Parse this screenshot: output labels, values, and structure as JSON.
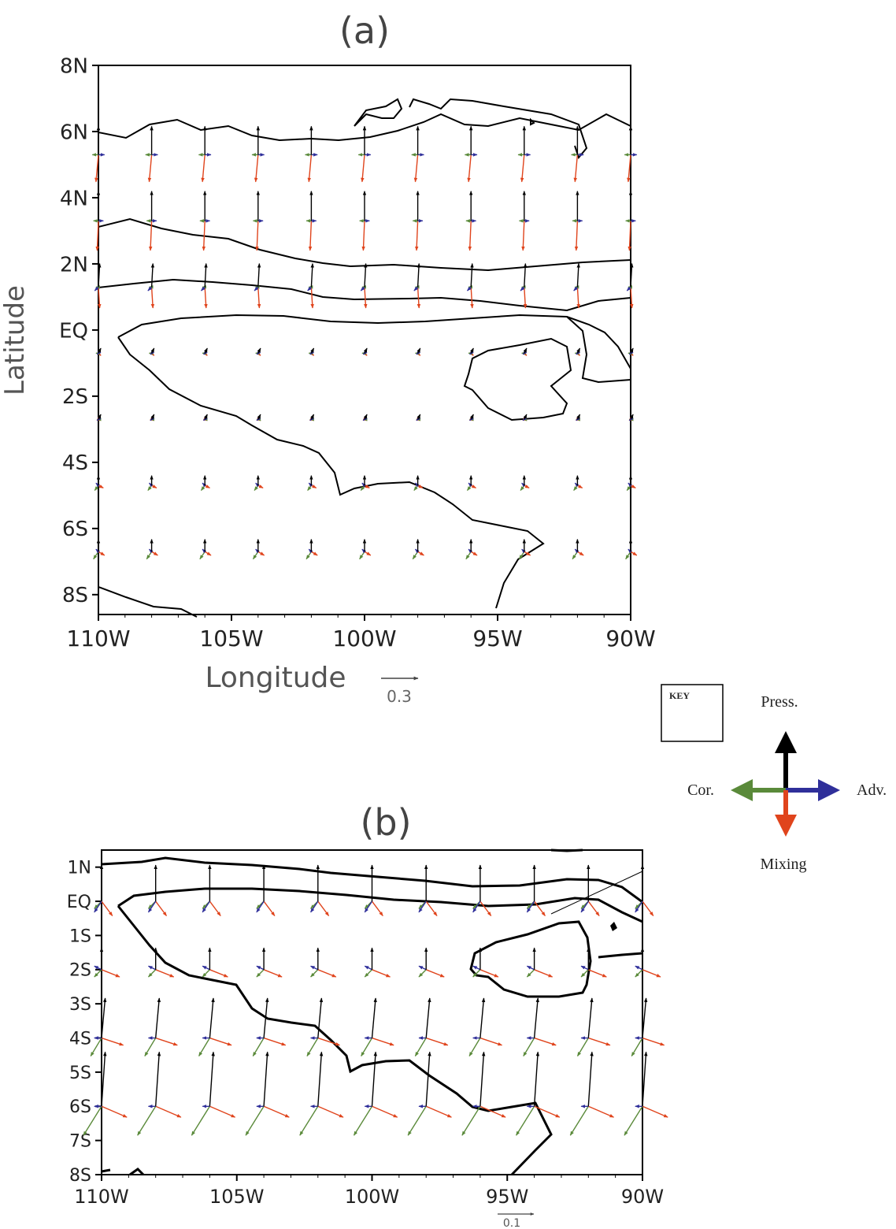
{
  "panel_a": {
    "title": "(a)",
    "ylabel": "Latitude",
    "xlabel": "Longitude",
    "y_ticks": [
      "8N",
      "6N",
      "4N",
      "2N",
      "EQ",
      "2S",
      "4S",
      "6S",
      "8S"
    ],
    "x_ticks": [
      "110W",
      "105W",
      "100W",
      "95W",
      "90W"
    ],
    "scale_label": "0.3"
  },
  "panel_b": {
    "title": "(b)",
    "y_ticks": [
      "1N",
      "EQ",
      "1S",
      "2S",
      "3S",
      "4S",
      "5S",
      "6S",
      "7S",
      "8S"
    ],
    "x_ticks": [
      "110W",
      "105W",
      "100W",
      "95W",
      "90W"
    ],
    "scale_label": "0.1"
  },
  "key": {
    "title": "KEY",
    "press": "Press.",
    "cor": "Cor.",
    "adv": "Adv.",
    "mixing": "Mixing",
    "colors": {
      "press": "#000000",
      "cor": "#5a8a3a",
      "adv": "#2f2f9a",
      "mixing": "#e0441c"
    }
  },
  "chart_data": [
    {
      "type": "vector field",
      "panel": "a",
      "lon_range": [
        -110,
        -90
      ],
      "lat_range": [
        -8.6,
        8
      ],
      "units_per_scale_arrow": 0.3,
      "lon_points": [
        -110,
        -108,
        -106,
        -104,
        -102,
        -100,
        -98,
        -96,
        -94,
        -92,
        -90
      ],
      "rows": [
        {
          "lat": 5.3,
          "press": [
            0.0,
            0.23
          ],
          "cor": [
            -0.05,
            0
          ],
          "adv": [
            0.05,
            0
          ],
          "mixing": [
            -0.02,
            -0.22
          ]
        },
        {
          "lat": 3.3,
          "press": [
            0.0,
            0.24
          ],
          "cor": [
            -0.04,
            0
          ],
          "adv": [
            0.04,
            0
          ],
          "mixing": [
            -0.01,
            -0.24
          ]
        },
        {
          "lat": 1.3,
          "press": [
            0.01,
            0.19
          ],
          "cor": [
            -0.02,
            0
          ],
          "adv": [
            -0.03,
            -0.03
          ],
          "mixing": [
            0.01,
            -0.17
          ]
        },
        {
          "lat": -0.7,
          "press": [
            0.02,
            0.04
          ],
          "cor": [
            -0.02,
            0
          ],
          "adv": [
            -0.01,
            -0.01
          ],
          "mixing": [
            0.02,
            -0.02
          ]
        },
        {
          "lat": -2.7,
          "press": [
            0.02,
            0.04
          ],
          "cor": [
            -0.01,
            0
          ],
          "adv": [
            -0.01,
            -0.01
          ],
          "mixing": [
            0.02,
            -0.01
          ]
        },
        {
          "lat": -4.7,
          "press": [
            0.0,
            0.08
          ],
          "cor": [
            -0.03,
            -0.04
          ],
          "adv": [
            -0.02,
            0.02
          ],
          "mixing": [
            0.04,
            -0.02
          ]
        },
        {
          "lat": -6.7,
          "press": [
            0.0,
            0.1
          ],
          "cor": [
            -0.04,
            -0.06
          ],
          "adv": [
            -0.02,
            0.02
          ],
          "mixing": [
            0.05,
            -0.03
          ]
        }
      ]
    },
    {
      "type": "vector field",
      "panel": "b",
      "lon_range": [
        -110,
        -90
      ],
      "lat_range": [
        -8,
        1.5
      ],
      "units_per_scale_arrow": 0.1,
      "lon_points": [
        -110,
        -108,
        -106,
        -104,
        -102,
        -100,
        -98,
        -96,
        -94,
        -92,
        -90
      ],
      "rows": [
        {
          "lat": 0,
          "press": [
            0.0,
            0.1
          ],
          "cor": [
            -0.02,
            -0.02
          ],
          "adv": [
            -0.02,
            -0.03
          ],
          "mixing": [
            0.03,
            -0.04
          ]
        },
        {
          "lat": -2,
          "press": [
            0.0,
            0.06
          ],
          "cor": [
            -0.02,
            -0.02
          ],
          "adv": [
            -0.02,
            0.01
          ],
          "mixing": [
            0.05,
            -0.02
          ]
        },
        {
          "lat": -4,
          "press": [
            0.01,
            0.11
          ],
          "cor": [
            -0.03,
            -0.05
          ],
          "adv": [
            -0.02,
            0
          ],
          "mixing": [
            0.06,
            -0.02
          ]
        },
        {
          "lat": -6,
          "press": [
            0.01,
            0.15
          ],
          "cor": [
            -0.05,
            -0.08
          ],
          "adv": [
            -0.02,
            0
          ],
          "mixing": [
            0.07,
            -0.03
          ]
        }
      ]
    }
  ]
}
